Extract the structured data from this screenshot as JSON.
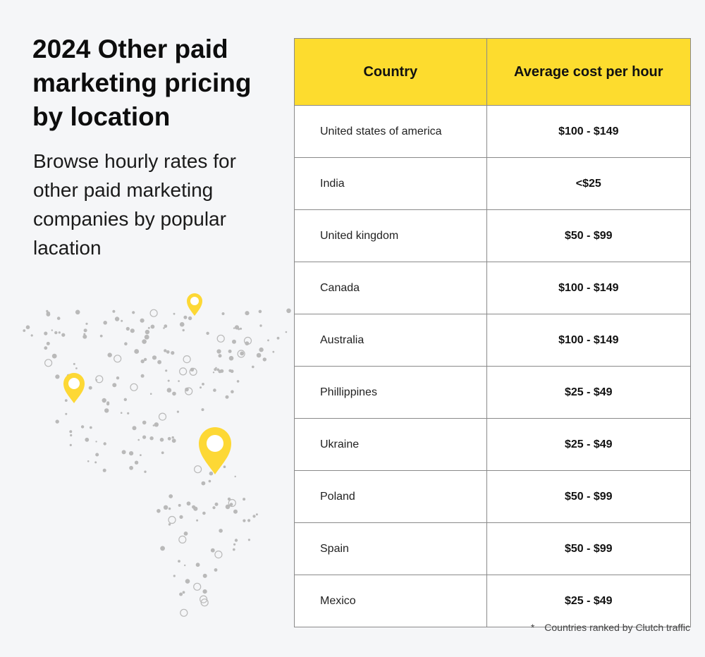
{
  "header": {
    "title": "2024 Other paid marketing pricing by location",
    "subtitle": "Browse hourly rates for other paid marketing companies by popular lacation"
  },
  "table": {
    "headers": {
      "country": "Country",
      "cost": "Average cost per hour"
    },
    "rows": [
      {
        "country": "United states of america",
        "cost": "$100 - $149"
      },
      {
        "country": "India",
        "cost": "<$25"
      },
      {
        "country": "United kingdom",
        "cost": "$50 - $99"
      },
      {
        "country": "Canada",
        "cost": "$100 - $149"
      },
      {
        "country": "Australia",
        "cost": "$100 - $149"
      },
      {
        "country": "Phillippines",
        "cost": "$25 - $49"
      },
      {
        "country": "Ukraine",
        "cost": "$25 - $49"
      },
      {
        "country": "Poland",
        "cost": "$50 - $99"
      },
      {
        "country": "Spain",
        "cost": "$50 - $99"
      },
      {
        "country": "Mexico",
        "cost": "$25 - $49"
      }
    ]
  },
  "footnote": {
    "marker": "*",
    "text": "Countries ranked by Clutch traffic"
  },
  "colors": {
    "accent": "#fddc2e",
    "pin": "#fdd835",
    "dots": "#b9b9b9",
    "background": "#f5f6f8"
  },
  "icons": {
    "map": "dotted-world-map-icon",
    "pin": "location-pin-icon"
  }
}
